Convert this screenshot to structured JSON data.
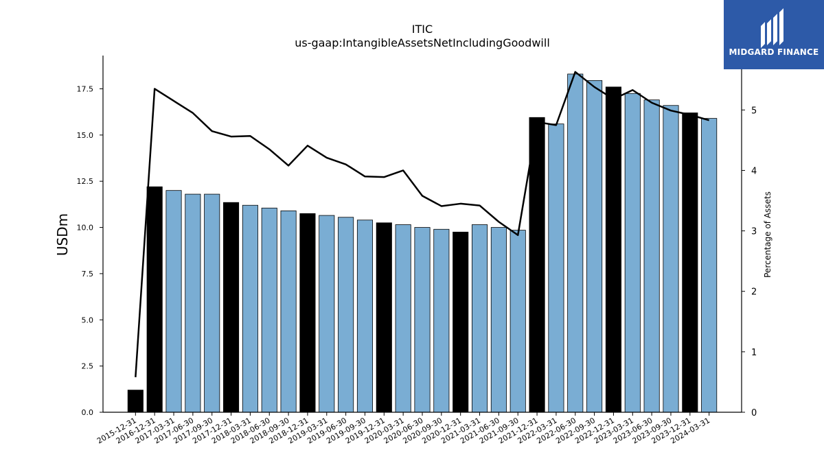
{
  "logo": {
    "text": "MIDGARD FINANCE",
    "color": "#2d5aa8"
  },
  "chart_data": {
    "type": "bar",
    "title": "ITIC",
    "subtitle": "us-gaap:IntangibleAssetsNetIncludingGoodwill",
    "ylabel": "USDm",
    "y2label": "Percentage of Assets",
    "ylim": [
      0,
      19.3
    ],
    "y2lim": [
      0,
      5.9
    ],
    "yticks": [
      "0.0",
      "2.5",
      "5.0",
      "7.5",
      "10.0",
      "12.5",
      "15.0",
      "17.5"
    ],
    "y2ticks": [
      "0",
      "1",
      "2",
      "3",
      "4",
      "5"
    ],
    "grid": false,
    "colors": {
      "quarter": "#7aadd3",
      "year_end": "#000000",
      "line": "#000000"
    },
    "categories": [
      "2015-12-31",
      "2016-12-31",
      "2017-03-31",
      "2017-06-30",
      "2017-09-30",
      "2017-12-31",
      "2018-03-31",
      "2018-06-30",
      "2018-09-30",
      "2018-12-31",
      "2019-03-31",
      "2019-06-30",
      "2019-09-30",
      "2019-12-31",
      "2020-03-31",
      "2020-06-30",
      "2020-09-30",
      "2020-12-31",
      "2021-03-31",
      "2021-06-30",
      "2021-09-30",
      "2021-12-31",
      "2022-03-31",
      "2022-06-30",
      "2022-09-30",
      "2022-12-31",
      "2023-03-31",
      "2023-06-30",
      "2023-09-30",
      "2023-12-31",
      "2024-03-31"
    ],
    "series": [
      {
        "type": "bar",
        "axis": "left",
        "values": [
          1.2,
          12.2,
          12.0,
          11.8,
          11.8,
          11.35,
          11.2,
          11.05,
          10.9,
          10.75,
          10.65,
          10.55,
          10.4,
          10.25,
          10.15,
          10.0,
          9.9,
          9.75,
          10.15,
          10.0,
          9.85,
          15.95,
          15.6,
          18.3,
          17.95,
          17.6,
          17.25,
          16.9,
          16.6,
          16.2,
          15.9
        ],
        "year_end": [
          true,
          true,
          false,
          false,
          false,
          true,
          false,
          false,
          false,
          true,
          false,
          false,
          false,
          true,
          false,
          false,
          false,
          true,
          false,
          false,
          false,
          true,
          false,
          false,
          false,
          true,
          false,
          false,
          false,
          true,
          false
        ]
      },
      {
        "type": "line",
        "axis": "right",
        "values": [
          0.58,
          5.35,
          5.15,
          4.95,
          4.65,
          4.56,
          4.57,
          4.35,
          4.08,
          4.41,
          4.21,
          4.1,
          3.9,
          3.89,
          4.0,
          3.58,
          3.41,
          3.45,
          3.42,
          3.15,
          2.93,
          4.8,
          4.75,
          5.63,
          5.38,
          5.18,
          5.33,
          5.12,
          4.99,
          4.92,
          4.83
        ]
      }
    ]
  }
}
